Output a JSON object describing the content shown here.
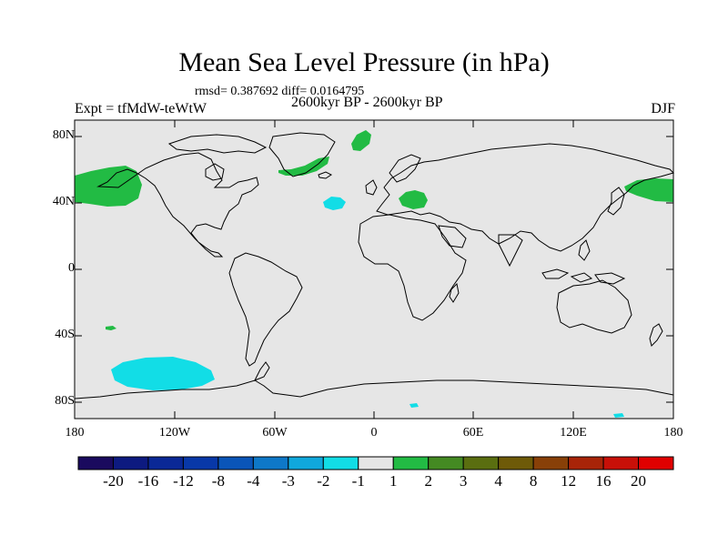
{
  "title": "Mean Sea Level Pressure (in hPa)",
  "stats": "rmsd= 0.387692 diff= 0.0164795",
  "experiment": "Expt = tfMdW-teWtW",
  "period": "2600kyr BP - 2600kyr BP",
  "season": "DJF",
  "lat_labels": [
    "80N",
    "40N",
    "0",
    "40S",
    "80S"
  ],
  "lon_labels": [
    "180",
    "120W",
    "60W",
    "0",
    "60E",
    "120E",
    "180"
  ],
  "colorbar": {
    "labels": [
      "-20",
      "-16",
      "-12",
      "-8",
      "-4",
      "-3",
      "-2",
      "-1",
      "1",
      "2",
      "3",
      "4",
      "8",
      "12",
      "16",
      "20"
    ],
    "colors": [
      "#1a0a5e",
      "#0d1a80",
      "#0a2896",
      "#0838a8",
      "#0a55b8",
      "#0e78c8",
      "#10a8dc",
      "#12dde6",
      "#e6e6e6",
      "#22bb44",
      "#448a22",
      "#5a6e10",
      "#6e5a08",
      "#884008",
      "#a82408",
      "#c81008",
      "#e00000"
    ]
  },
  "colors": {
    "ocean_bg": "#e6e6e6",
    "positive_anomaly": "#22bb44",
    "negative_anomaly": "#12dde6"
  }
}
